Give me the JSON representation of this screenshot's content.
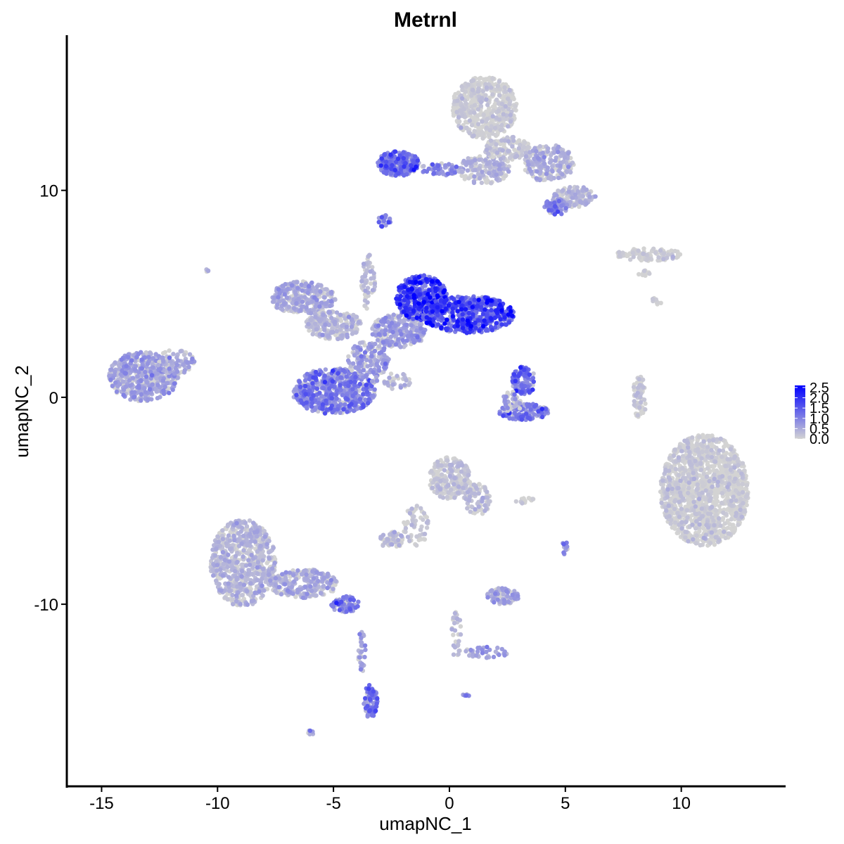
{
  "chart_data": {
    "type": "scatter",
    "title": "Metrnl",
    "xlabel": "umapNC_1",
    "ylabel": "umapNC_2",
    "xlim": [
      -16.5,
      14.5
    ],
    "ylim": [
      -18.8,
      17.5
    ],
    "x_ticks": [
      -15,
      -10,
      -5,
      0,
      5,
      10
    ],
    "x_tick_labels": [
      "-15",
      "-10",
      "-5",
      "0",
      "5",
      "10"
    ],
    "y_ticks": [
      -10,
      0,
      10
    ],
    "y_tick_labels": [
      "-10",
      "0",
      "10"
    ],
    "grid": false,
    "legend": {
      "placement": "right",
      "type": "colorbar",
      "min": 0,
      "max": 2.6,
      "ticks": [
        2.5,
        2.0,
        1.5,
        1.0,
        0.5,
        0.0
      ],
      "tick_labels": [
        "2.5",
        "2.0",
        "1.5",
        "1.0",
        "0.5",
        "0.0"
      ],
      "low_color": "#d3d3d3",
      "high_color": "#0000ff"
    },
    "clusters": [
      {
        "id": "c01",
        "cx": -13.2,
        "cy": 1.0,
        "rx": 1.5,
        "ry": 1.2,
        "n": 500,
        "mean_expr": 0.55
      },
      {
        "id": "c02",
        "cx": -11.8,
        "cy": 1.7,
        "rx": 0.8,
        "ry": 0.6,
        "n": 80,
        "mean_expr": 0.5
      },
      {
        "id": "c03",
        "cx": -6.3,
        "cy": 4.8,
        "rx": 1.4,
        "ry": 0.8,
        "n": 300,
        "mean_expr": 0.45
      },
      {
        "id": "c04",
        "cx": -5.0,
        "cy": 3.5,
        "rx": 1.2,
        "ry": 0.7,
        "n": 220,
        "mean_expr": 0.35
      },
      {
        "id": "c05",
        "cx": -5.0,
        "cy": 0.3,
        "rx": 1.8,
        "ry": 1.1,
        "n": 600,
        "mean_expr": 0.85
      },
      {
        "id": "c06",
        "cx": -3.5,
        "cy": 1.8,
        "rx": 0.9,
        "ry": 0.9,
        "n": 150,
        "mean_expr": 0.6
      },
      {
        "id": "c07",
        "cx": -3.5,
        "cy": 5.5,
        "rx": 0.3,
        "ry": 1.4,
        "n": 60,
        "mean_expr": 0.3
      },
      {
        "id": "c08",
        "cx": -2.2,
        "cy": 3.2,
        "rx": 1.2,
        "ry": 0.8,
        "n": 250,
        "mean_expr": 0.55
      },
      {
        "id": "c09",
        "cx": -1.2,
        "cy": 4.8,
        "rx": 1.1,
        "ry": 1.1,
        "n": 450,
        "mean_expr": 1.45
      },
      {
        "id": "c10",
        "cx": 0.8,
        "cy": 4.0,
        "rx": 2.0,
        "ry": 0.9,
        "n": 550,
        "mean_expr": 1.35
      },
      {
        "id": "c11",
        "cx": -2.5,
        "cy": 0.8,
        "rx": 0.9,
        "ry": 0.4,
        "n": 40,
        "mean_expr": 0.4
      },
      {
        "id": "c12",
        "cx": 3.2,
        "cy": 0.8,
        "rx": 0.5,
        "ry": 0.7,
        "n": 120,
        "mean_expr": 1.0
      },
      {
        "id": "c13",
        "cx": 3.2,
        "cy": -0.7,
        "rx": 1.1,
        "ry": 0.4,
        "n": 130,
        "mean_expr": 0.9
      },
      {
        "id": "c14",
        "cx": 2.7,
        "cy": -0.2,
        "rx": 0.5,
        "ry": 0.5,
        "n": 40,
        "mean_expr": 0.5
      },
      {
        "id": "c15",
        "cx": -2.2,
        "cy": 11.3,
        "rx": 0.9,
        "ry": 0.6,
        "n": 250,
        "mean_expr": 1.0
      },
      {
        "id": "c16",
        "cx": -0.4,
        "cy": 11.0,
        "rx": 1.0,
        "ry": 0.3,
        "n": 60,
        "mean_expr": 0.7
      },
      {
        "id": "c17",
        "cx": 1.5,
        "cy": 11.0,
        "rx": 1.1,
        "ry": 0.7,
        "n": 150,
        "mean_expr": 0.35
      },
      {
        "id": "c18",
        "cx": 1.5,
        "cy": 14.0,
        "rx": 1.4,
        "ry": 1.5,
        "n": 550,
        "mean_expr": 0.08
      },
      {
        "id": "c19",
        "cx": 2.5,
        "cy": 12.0,
        "rx": 1.0,
        "ry": 0.6,
        "n": 120,
        "mean_expr": 0.2
      },
      {
        "id": "c20",
        "cx": 4.3,
        "cy": 11.3,
        "rx": 1.1,
        "ry": 0.9,
        "n": 200,
        "mean_expr": 0.4
      },
      {
        "id": "c21",
        "cx": 5.4,
        "cy": 9.7,
        "rx": 0.9,
        "ry": 0.5,
        "n": 130,
        "mean_expr": 0.35
      },
      {
        "id": "c22",
        "cx": 4.6,
        "cy": 9.2,
        "rx": 0.5,
        "ry": 0.4,
        "n": 60,
        "mean_expr": 0.8
      },
      {
        "id": "c23",
        "cx": -2.8,
        "cy": 8.5,
        "rx": 0.3,
        "ry": 0.3,
        "n": 20,
        "mean_expr": 1.0
      },
      {
        "id": "c24",
        "cx": 8.6,
        "cy": 6.9,
        "rx": 1.4,
        "ry": 0.3,
        "n": 100,
        "mean_expr": 0.05
      },
      {
        "id": "c25",
        "cx": 8.4,
        "cy": 6.0,
        "rx": 0.3,
        "ry": 0.2,
        "n": 12,
        "mean_expr": 0.05
      },
      {
        "id": "c26",
        "cx": 11.0,
        "cy": -4.5,
        "rx": 1.9,
        "ry": 2.7,
        "n": 1400,
        "mean_expr": 0.08
      },
      {
        "id": "c27",
        "cx": 8.2,
        "cy": 0.0,
        "rx": 0.3,
        "ry": 1.0,
        "n": 60,
        "mean_expr": 0.15
      },
      {
        "id": "c28",
        "cx": -8.9,
        "cy": -8.0,
        "rx": 1.4,
        "ry": 2.1,
        "n": 700,
        "mean_expr": 0.35
      },
      {
        "id": "c29",
        "cx": -6.3,
        "cy": -9.0,
        "rx": 1.5,
        "ry": 0.7,
        "n": 250,
        "mean_expr": 0.45
      },
      {
        "id": "c30",
        "cx": -4.5,
        "cy": -10.0,
        "rx": 0.6,
        "ry": 0.4,
        "n": 80,
        "mean_expr": 0.9
      },
      {
        "id": "c31",
        "cx": -3.4,
        "cy": -14.7,
        "rx": 0.3,
        "ry": 0.8,
        "n": 80,
        "mean_expr": 0.9
      },
      {
        "id": "c32",
        "cx": -3.8,
        "cy": -12.3,
        "rx": 0.2,
        "ry": 1.0,
        "n": 30,
        "mean_expr": 0.5
      },
      {
        "id": "c33",
        "cx": 0.0,
        "cy": -3.9,
        "rx": 0.9,
        "ry": 1.0,
        "n": 250,
        "mean_expr": 0.2
      },
      {
        "id": "c34",
        "cx": 1.2,
        "cy": -4.9,
        "rx": 0.6,
        "ry": 0.8,
        "n": 80,
        "mean_expr": 0.3
      },
      {
        "id": "c35",
        "cx": -1.5,
        "cy": -6.2,
        "rx": 0.6,
        "ry": 1.0,
        "n": 60,
        "mean_expr": 0.2
      },
      {
        "id": "c36",
        "cx": -2.5,
        "cy": -6.9,
        "rx": 0.5,
        "ry": 0.4,
        "n": 50,
        "mean_expr": 0.3
      },
      {
        "id": "c37",
        "cx": 2.3,
        "cy": -9.6,
        "rx": 0.7,
        "ry": 0.4,
        "n": 90,
        "mean_expr": 0.5
      },
      {
        "id": "c38",
        "cx": 0.3,
        "cy": -11.5,
        "rx": 0.2,
        "ry": 1.2,
        "n": 30,
        "mean_expr": 0.3
      },
      {
        "id": "c39",
        "cx": 1.6,
        "cy": -12.3,
        "rx": 1.0,
        "ry": 0.3,
        "n": 40,
        "mean_expr": 0.6
      },
      {
        "id": "c40",
        "cx": 5.0,
        "cy": -7.3,
        "rx": 0.2,
        "ry": 0.3,
        "n": 15,
        "mean_expr": 0.7
      },
      {
        "id": "c41",
        "cx": 3.3,
        "cy": -5.0,
        "rx": 0.5,
        "ry": 0.15,
        "n": 15,
        "mean_expr": 0.05
      },
      {
        "id": "c42",
        "cx": -6.0,
        "cy": -16.2,
        "rx": 0.15,
        "ry": 0.15,
        "n": 6,
        "mean_expr": 0.7
      },
      {
        "id": "c43",
        "cx": 0.7,
        "cy": -14.4,
        "rx": 0.15,
        "ry": 0.15,
        "n": 6,
        "mean_expr": 0.7
      },
      {
        "id": "c44",
        "cx": -10.5,
        "cy": 6.1,
        "rx": 0.1,
        "ry": 0.1,
        "n": 4,
        "mean_expr": 0.5
      },
      {
        "id": "c45",
        "cx": 8.9,
        "cy": 4.6,
        "rx": 0.3,
        "ry": 0.2,
        "n": 8,
        "mean_expr": 0.05
      }
    ]
  }
}
